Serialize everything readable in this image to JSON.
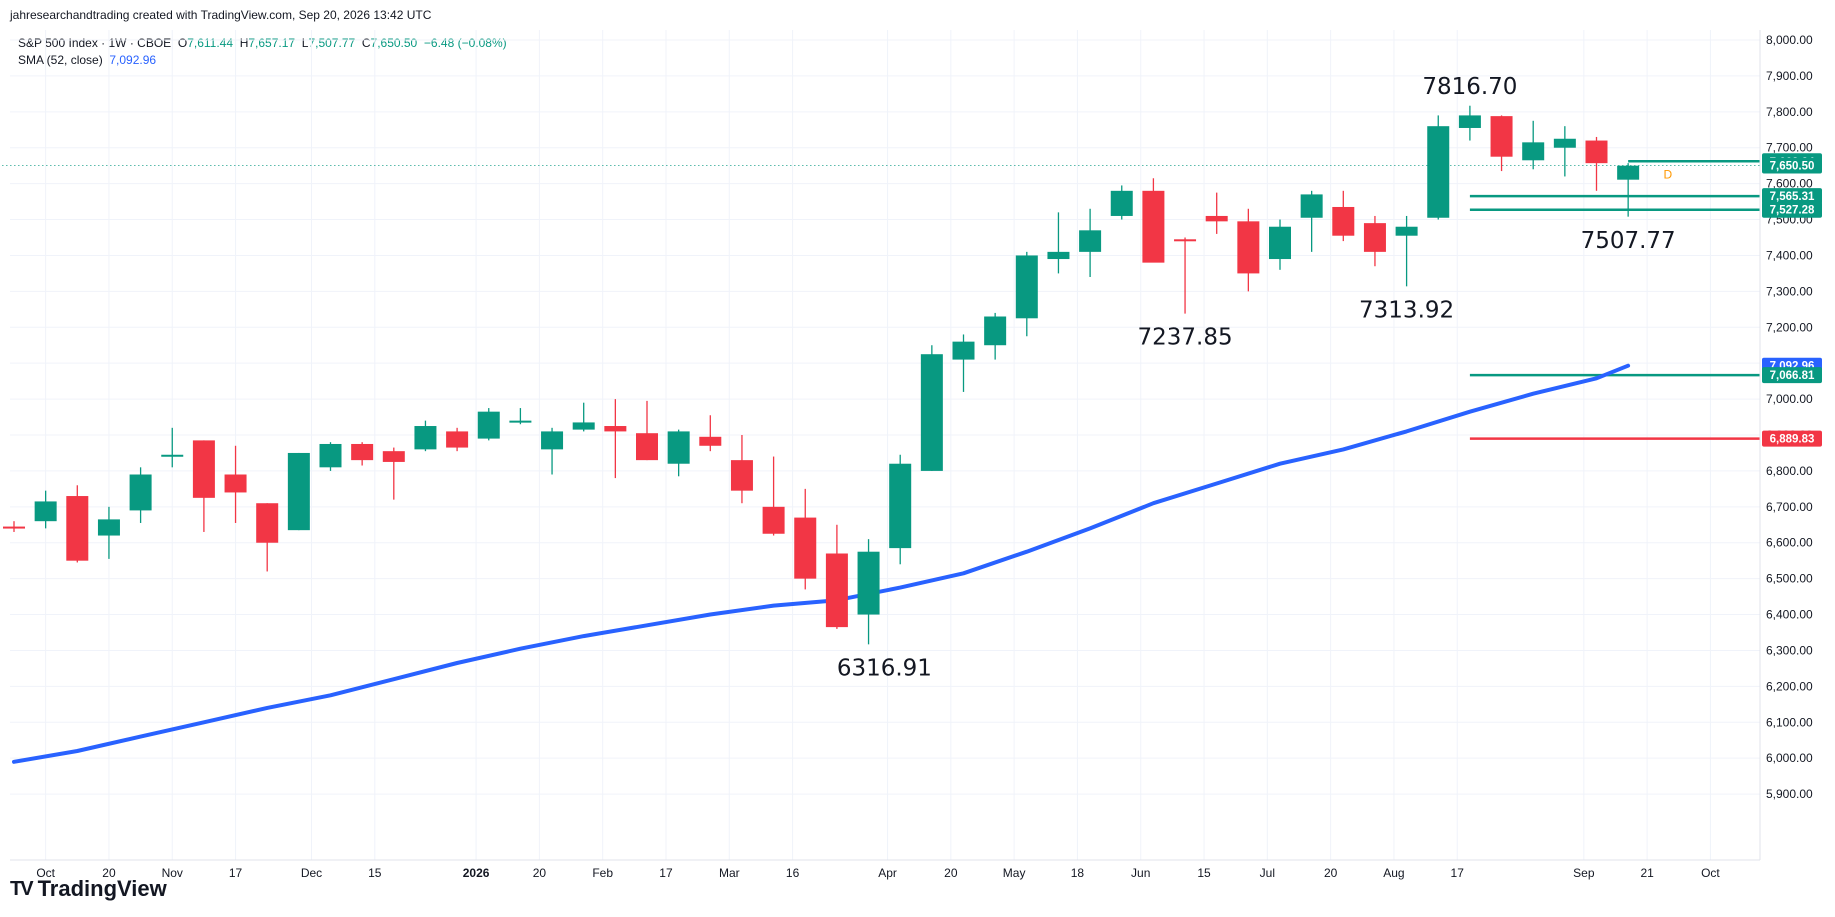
{
  "header": {
    "text": "jahresearchandtrading created with TradingView.com, Sep 20, 2026 13:42 UTC"
  },
  "legend": {
    "symbol": "S&P 500 Index · 1W · CBOE",
    "open_label": "O",
    "open": "7,611.44",
    "high_label": "H",
    "high": "7,657.17",
    "low_label": "L",
    "low": "7,507.77",
    "close_label": "C",
    "close": "7,650.50",
    "change": "−6.48 (−0.08%)",
    "sma_label": "SMA (52, close)",
    "sma_value": "7,092.96"
  },
  "brand": {
    "name": "TradingView",
    "logo": "TV"
  },
  "colors": {
    "up": "#089981",
    "down": "#f23645",
    "sma": "#2962ff",
    "grid": "#f0f3fa"
  },
  "chart_data": {
    "type": "candlestick",
    "title": "S&P 500 Index · 1W · CBOE",
    "ylim": [
      5800,
      8000
    ],
    "y_ticks": [
      "5,900.00",
      "6,000.00",
      "6,100.00",
      "6,200.00",
      "6,300.00",
      "6,400.00",
      "6,500.00",
      "6,600.00",
      "6,700.00",
      "6,800.00",
      "6,900.00",
      "7,000.00",
      "7,100.00",
      "7,200.00",
      "7,300.00",
      "7,400.00",
      "7,500.00",
      "7,600.00",
      "7,700.00",
      "7,800.00",
      "7,900.00",
      "8,000.00"
    ],
    "x_ticks": [
      {
        "label": "Oct",
        "w": 1.0
      },
      {
        "label": "20",
        "w": 3.0
      },
      {
        "label": "Nov",
        "w": 5.0
      },
      {
        "label": "17",
        "w": 7.0
      },
      {
        "label": "Dec",
        "w": 9.4
      },
      {
        "label": "15",
        "w": 11.4
      },
      {
        "label": "2026",
        "w": 14.6
      },
      {
        "label": "20",
        "w": 16.6
      },
      {
        "label": "Feb",
        "w": 18.6
      },
      {
        "label": "17",
        "w": 20.6
      },
      {
        "label": "Mar",
        "w": 22.6
      },
      {
        "label": "16",
        "w": 24.6
      },
      {
        "label": "Apr",
        "w": 27.6
      },
      {
        "label": "20",
        "w": 29.6
      },
      {
        "label": "May",
        "w": 31.6
      },
      {
        "label": "18",
        "w": 33.6
      },
      {
        "label": "Jun",
        "w": 35.6
      },
      {
        "label": "15",
        "w": 37.6
      },
      {
        "label": "Jul",
        "w": 39.6
      },
      {
        "label": "20",
        "w": 41.6
      },
      {
        "label": "Aug",
        "w": 43.6
      },
      {
        "label": "17",
        "w": 45.6
      },
      {
        "label": "Sep",
        "w": 49.6
      },
      {
        "label": "21",
        "w": 51.6
      },
      {
        "label": "Oct",
        "w": 53.6
      }
    ],
    "candles": [
      {
        "o": 6645,
        "h": 6660,
        "l": 6630,
        "c": 6642
      },
      {
        "o": 6660,
        "h": 6745,
        "l": 6640,
        "c": 6715
      },
      {
        "o": 6730,
        "h": 6760,
        "l": 6545,
        "c": 6550
      },
      {
        "o": 6620,
        "h": 6700,
        "l": 6555,
        "c": 6665
      },
      {
        "o": 6690,
        "h": 6810,
        "l": 6655,
        "c": 6790
      },
      {
        "o": 6840,
        "h": 6920,
        "l": 6810,
        "c": 6845
      },
      {
        "o": 6885,
        "h": 6885,
        "l": 6630,
        "c": 6725
      },
      {
        "o": 6790,
        "h": 6870,
        "l": 6655,
        "c": 6740
      },
      {
        "o": 6710,
        "h": 6710,
        "l": 6520,
        "c": 6600
      },
      {
        "o": 6635,
        "h": 6850,
        "l": 6635,
        "c": 6850
      },
      {
        "o": 6810,
        "h": 6880,
        "l": 6800,
        "c": 6875
      },
      {
        "o": 6875,
        "h": 6880,
        "l": 6815,
        "c": 6830
      },
      {
        "o": 6855,
        "h": 6865,
        "l": 6720,
        "c": 6825
      },
      {
        "o": 6860,
        "h": 6940,
        "l": 6855,
        "c": 6925
      },
      {
        "o": 6910,
        "h": 6920,
        "l": 6855,
        "c": 6865
      },
      {
        "o": 6890,
        "h": 6975,
        "l": 6885,
        "c": 6965
      },
      {
        "o": 6940,
        "h": 6975,
        "l": 6930,
        "c": 6940
      },
      {
        "o": 6860,
        "h": 6920,
        "l": 6790,
        "c": 6910
      },
      {
        "o": 6915,
        "h": 6990,
        "l": 6910,
        "c": 6935
      },
      {
        "o": 6925,
        "h": 7000,
        "l": 6780,
        "c": 6910
      },
      {
        "o": 6905,
        "h": 6995,
        "l": 6830,
        "c": 6830
      },
      {
        "o": 6820,
        "h": 6915,
        "l": 6785,
        "c": 6910
      },
      {
        "o": 6895,
        "h": 6955,
        "l": 6855,
        "c": 6870
      },
      {
        "o": 6830,
        "h": 6900,
        "l": 6710,
        "c": 6745
      },
      {
        "o": 6700,
        "h": 6840,
        "l": 6620,
        "c": 6625
      },
      {
        "o": 6670,
        "h": 6750,
        "l": 6470,
        "c": 6500
      },
      {
        "o": 6570,
        "h": 6650,
        "l": 6360,
        "c": 6365
      },
      {
        "o": 6400,
        "h": 6610,
        "l": 6317,
        "c": 6575
      },
      {
        "o": 6585,
        "h": 6845,
        "l": 6540,
        "c": 6820
      },
      {
        "o": 6800,
        "h": 7150,
        "l": 6800,
        "c": 7125
      },
      {
        "o": 7110,
        "h": 7180,
        "l": 7020,
        "c": 7160
      },
      {
        "o": 7150,
        "h": 7240,
        "l": 7110,
        "c": 7230
      },
      {
        "o": 7225,
        "h": 7410,
        "l": 7175,
        "c": 7400
      },
      {
        "o": 7390,
        "h": 7520,
        "l": 7350,
        "c": 7410
      },
      {
        "o": 7410,
        "h": 7530,
        "l": 7340,
        "c": 7470
      },
      {
        "o": 7510,
        "h": 7595,
        "l": 7500,
        "c": 7580
      },
      {
        "o": 7580,
        "h": 7615,
        "l": 7385,
        "c": 7380
      },
      {
        "o": 7445,
        "h": 7450,
        "l": 7238,
        "c": 7440
      },
      {
        "o": 7510,
        "h": 7575,
        "l": 7460,
        "c": 7495
      },
      {
        "o": 7495,
        "h": 7530,
        "l": 7300,
        "c": 7350
      },
      {
        "o": 7390,
        "h": 7500,
        "l": 7360,
        "c": 7480
      },
      {
        "o": 7505,
        "h": 7580,
        "l": 7410,
        "c": 7570
      },
      {
        "o": 7535,
        "h": 7580,
        "l": 7440,
        "c": 7455
      },
      {
        "o": 7490,
        "h": 7510,
        "l": 7370,
        "c": 7410
      },
      {
        "o": 7455,
        "h": 7510,
        "l": 7314,
        "c": 7480
      },
      {
        "o": 7505,
        "h": 7790,
        "l": 7500,
        "c": 7760
      },
      {
        "o": 7755,
        "h": 7817,
        "l": 7720,
        "c": 7790
      },
      {
        "o": 7788,
        "h": 7790,
        "l": 7635,
        "c": 7675
      },
      {
        "o": 7665,
        "h": 7775,
        "l": 7640,
        "c": 7715
      },
      {
        "o": 7700,
        "h": 7760,
        "l": 7620,
        "c": 7725
      },
      {
        "o": 7720,
        "h": 7730,
        "l": 7580,
        "c": 7657
      },
      {
        "o": 7611,
        "h": 7657,
        "l": 7508,
        "c": 7650
      }
    ],
    "sma": {
      "name": "SMA (52, close)",
      "points": [
        {
          "w": 0,
          "v": 5990
        },
        {
          "w": 2,
          "v": 6020
        },
        {
          "w": 4,
          "v": 6060
        },
        {
          "w": 6,
          "v": 6100
        },
        {
          "w": 8,
          "v": 6140
        },
        {
          "w": 10,
          "v": 6175
        },
        {
          "w": 12,
          "v": 6220
        },
        {
          "w": 14,
          "v": 6265
        },
        {
          "w": 16,
          "v": 6305
        },
        {
          "w": 18,
          "v": 6340
        },
        {
          "w": 20,
          "v": 6370
        },
        {
          "w": 22,
          "v": 6400
        },
        {
          "w": 24,
          "v": 6425
        },
        {
          "w": 26,
          "v": 6440
        },
        {
          "w": 28,
          "v": 6475
        },
        {
          "w": 30,
          "v": 6515
        },
        {
          "w": 32,
          "v": 6575
        },
        {
          "w": 34,
          "v": 6640
        },
        {
          "w": 36,
          "v": 6710
        },
        {
          "w": 38,
          "v": 6765
        },
        {
          "w": 40,
          "v": 6820
        },
        {
          "w": 42,
          "v": 6860
        },
        {
          "w": 44,
          "v": 6910
        },
        {
          "w": 46,
          "v": 6965
        },
        {
          "w": 48,
          "v": 7015
        },
        {
          "w": 50,
          "v": 7058
        },
        {
          "w": 51,
          "v": 7092.96
        }
      ]
    },
    "hlines": [
      {
        "v": 7650.5,
        "style": "dotted",
        "color": "#089981",
        "from": -1,
        "to": 55.5
      },
      {
        "v": 7662.24,
        "style": "solid",
        "color": "#089981",
        "from": 51,
        "to": 55.5
      },
      {
        "v": 7565.31,
        "style": "solid",
        "color": "#089981",
        "from": 46,
        "to": 55.5
      },
      {
        "v": 7527.28,
        "style": "solid",
        "color": "#089981",
        "from": 46,
        "to": 55.5
      },
      {
        "v": 7066.81,
        "style": "solid",
        "color": "#089981",
        "from": 46,
        "to": 55.5
      },
      {
        "v": 6889.83,
        "style": "solid",
        "color": "#f23645",
        "from": 46,
        "to": 55.5
      }
    ],
    "price_labels": [
      {
        "v": 7662.24,
        "text": "7,662.24",
        "color": "#089981"
      },
      {
        "v": 7650.5,
        "text": "7,650.50",
        "color": "#089981"
      },
      {
        "v": 7565.31,
        "text": "7,565.31",
        "color": "#089981"
      },
      {
        "v": 7527.28,
        "text": "7,527.28",
        "color": "#089981"
      },
      {
        "v": 7092.96,
        "text": "7,092.96",
        "color": "#2962ff"
      },
      {
        "v": 7066.81,
        "text": "7,066.81",
        "color": "#089981"
      },
      {
        "v": 6889.83,
        "text": "6,889.83",
        "color": "#f23645"
      }
    ],
    "annotations": [
      {
        "text": "7816.70",
        "w": 46,
        "v": 7816.7,
        "pos": "above"
      },
      {
        "text": "7237.85",
        "w": 37,
        "v": 7237.85,
        "pos": "below"
      },
      {
        "text": "7313.92",
        "w": 44,
        "v": 7313.92,
        "pos": "below"
      },
      {
        "text": "7507.77",
        "w": 51,
        "v": 7507.77,
        "pos": "below"
      },
      {
        "text": "6316.91",
        "w": 27.5,
        "v": 6316.91,
        "pos": "below"
      }
    ],
    "marker": {
      "text": "D",
      "w": 52,
      "v": 7625,
      "color": "#ff9800"
    }
  }
}
